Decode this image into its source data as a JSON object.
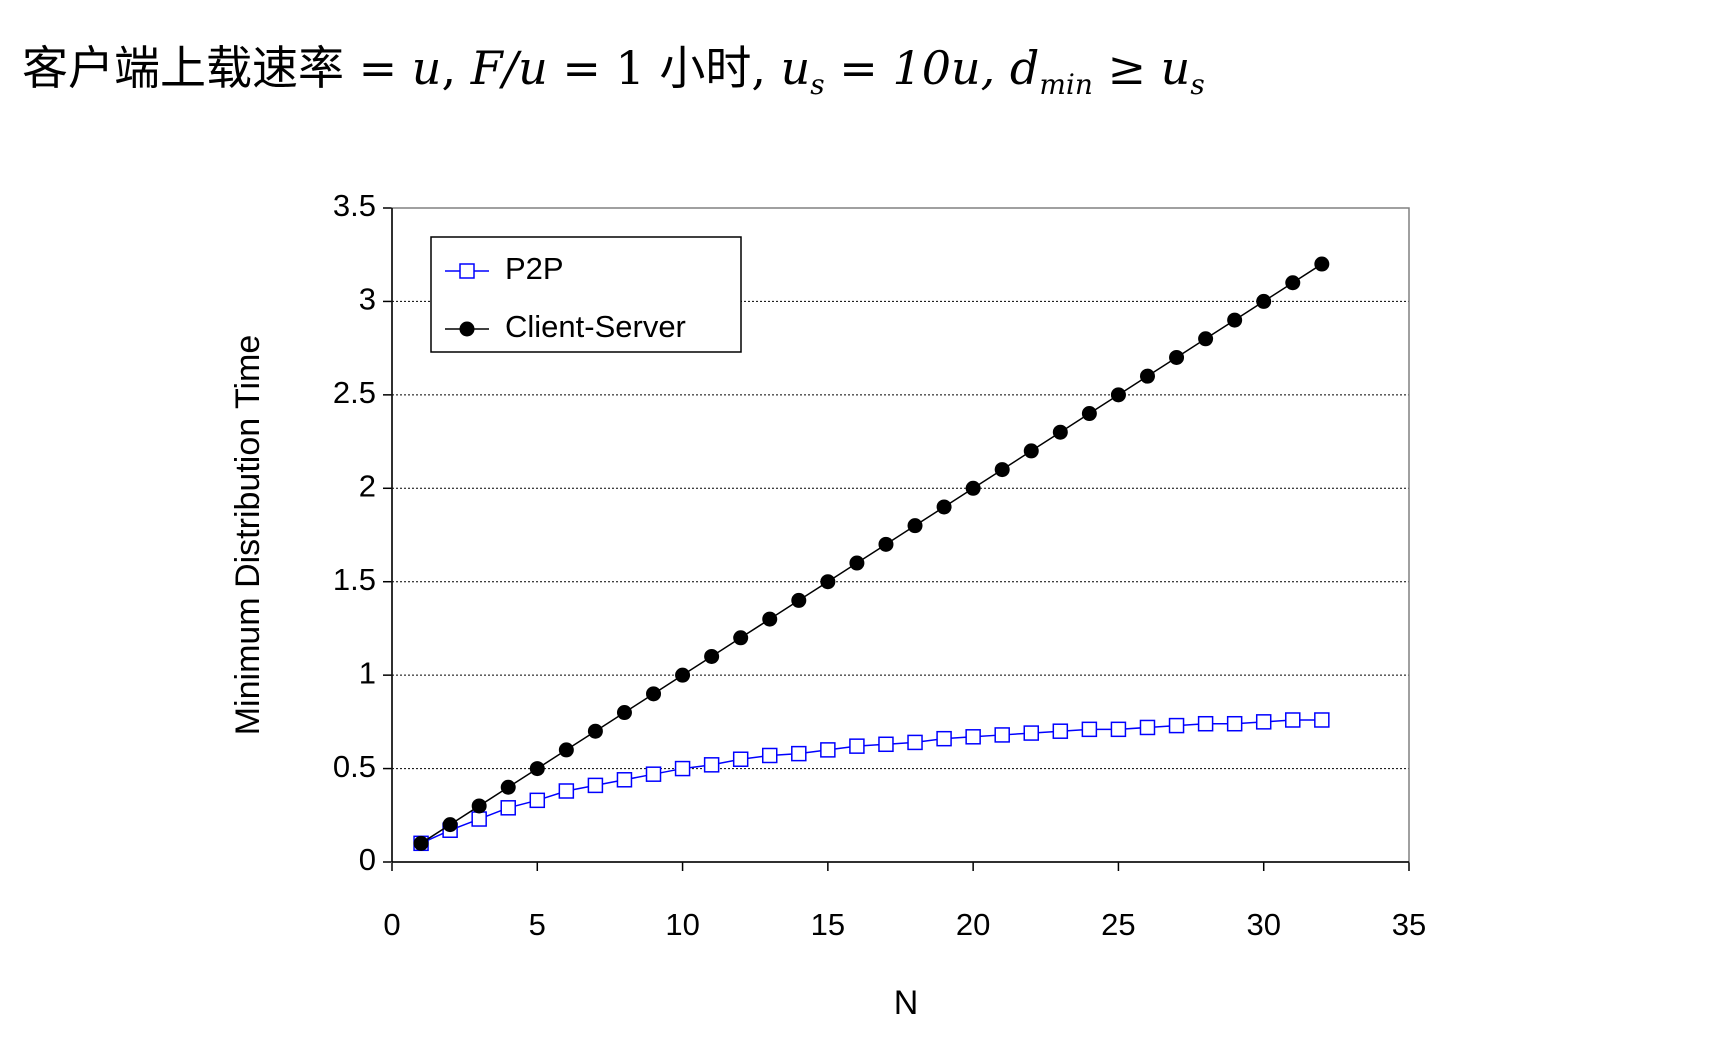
{
  "title_parts": [
    "客户端上载速率 = ",
    "u",
    ",   ",
    "F/u",
    " = 1 小时,   ",
    "u",
    "s",
    " = 10u,   ",
    "d",
    "min",
    " ≥ ",
    "u",
    "s"
  ],
  "chart_data": {
    "type": "line",
    "xlabel": "N",
    "ylabel": "Minimum Distribution Time",
    "x": [
      1,
      2,
      3,
      4,
      5,
      6,
      7,
      8,
      9,
      10,
      11,
      12,
      13,
      14,
      15,
      16,
      17,
      18,
      19,
      20,
      21,
      22,
      23,
      24,
      25,
      26,
      27,
      28,
      29,
      30,
      31,
      32
    ],
    "series": [
      {
        "name": "P2P",
        "color": "#0000ff",
        "marker": "square",
        "values": [
          0.1,
          0.17,
          0.23,
          0.29,
          0.33,
          0.38,
          0.41,
          0.44,
          0.47,
          0.5,
          0.52,
          0.55,
          0.57,
          0.58,
          0.6,
          0.62,
          0.63,
          0.64,
          0.66,
          0.67,
          0.68,
          0.69,
          0.7,
          0.71,
          0.71,
          0.72,
          0.73,
          0.74,
          0.74,
          0.75,
          0.76,
          0.76
        ]
      },
      {
        "name": "Client-Server",
        "color": "#000000",
        "marker": "circle",
        "values": [
          0.1,
          0.2,
          0.3,
          0.4,
          0.5,
          0.6,
          0.7,
          0.8,
          0.9,
          1.0,
          1.1,
          1.2,
          1.3,
          1.4,
          1.5,
          1.6,
          1.7,
          1.8,
          1.9,
          2.0,
          2.1,
          2.2,
          2.3,
          2.4,
          2.5,
          2.6,
          2.7,
          2.8,
          2.9,
          3.0,
          3.1,
          3.2
        ]
      }
    ],
    "xlim": [
      0,
      35
    ],
    "xticks": [
      0,
      5,
      10,
      15,
      20,
      25,
      30,
      35
    ],
    "ylim": [
      0,
      3.5
    ],
    "yticks": [
      0,
      0.5,
      1,
      1.5,
      2,
      2.5,
      3,
      3.5
    ],
    "grid": true,
    "legend": "upper left"
  }
}
